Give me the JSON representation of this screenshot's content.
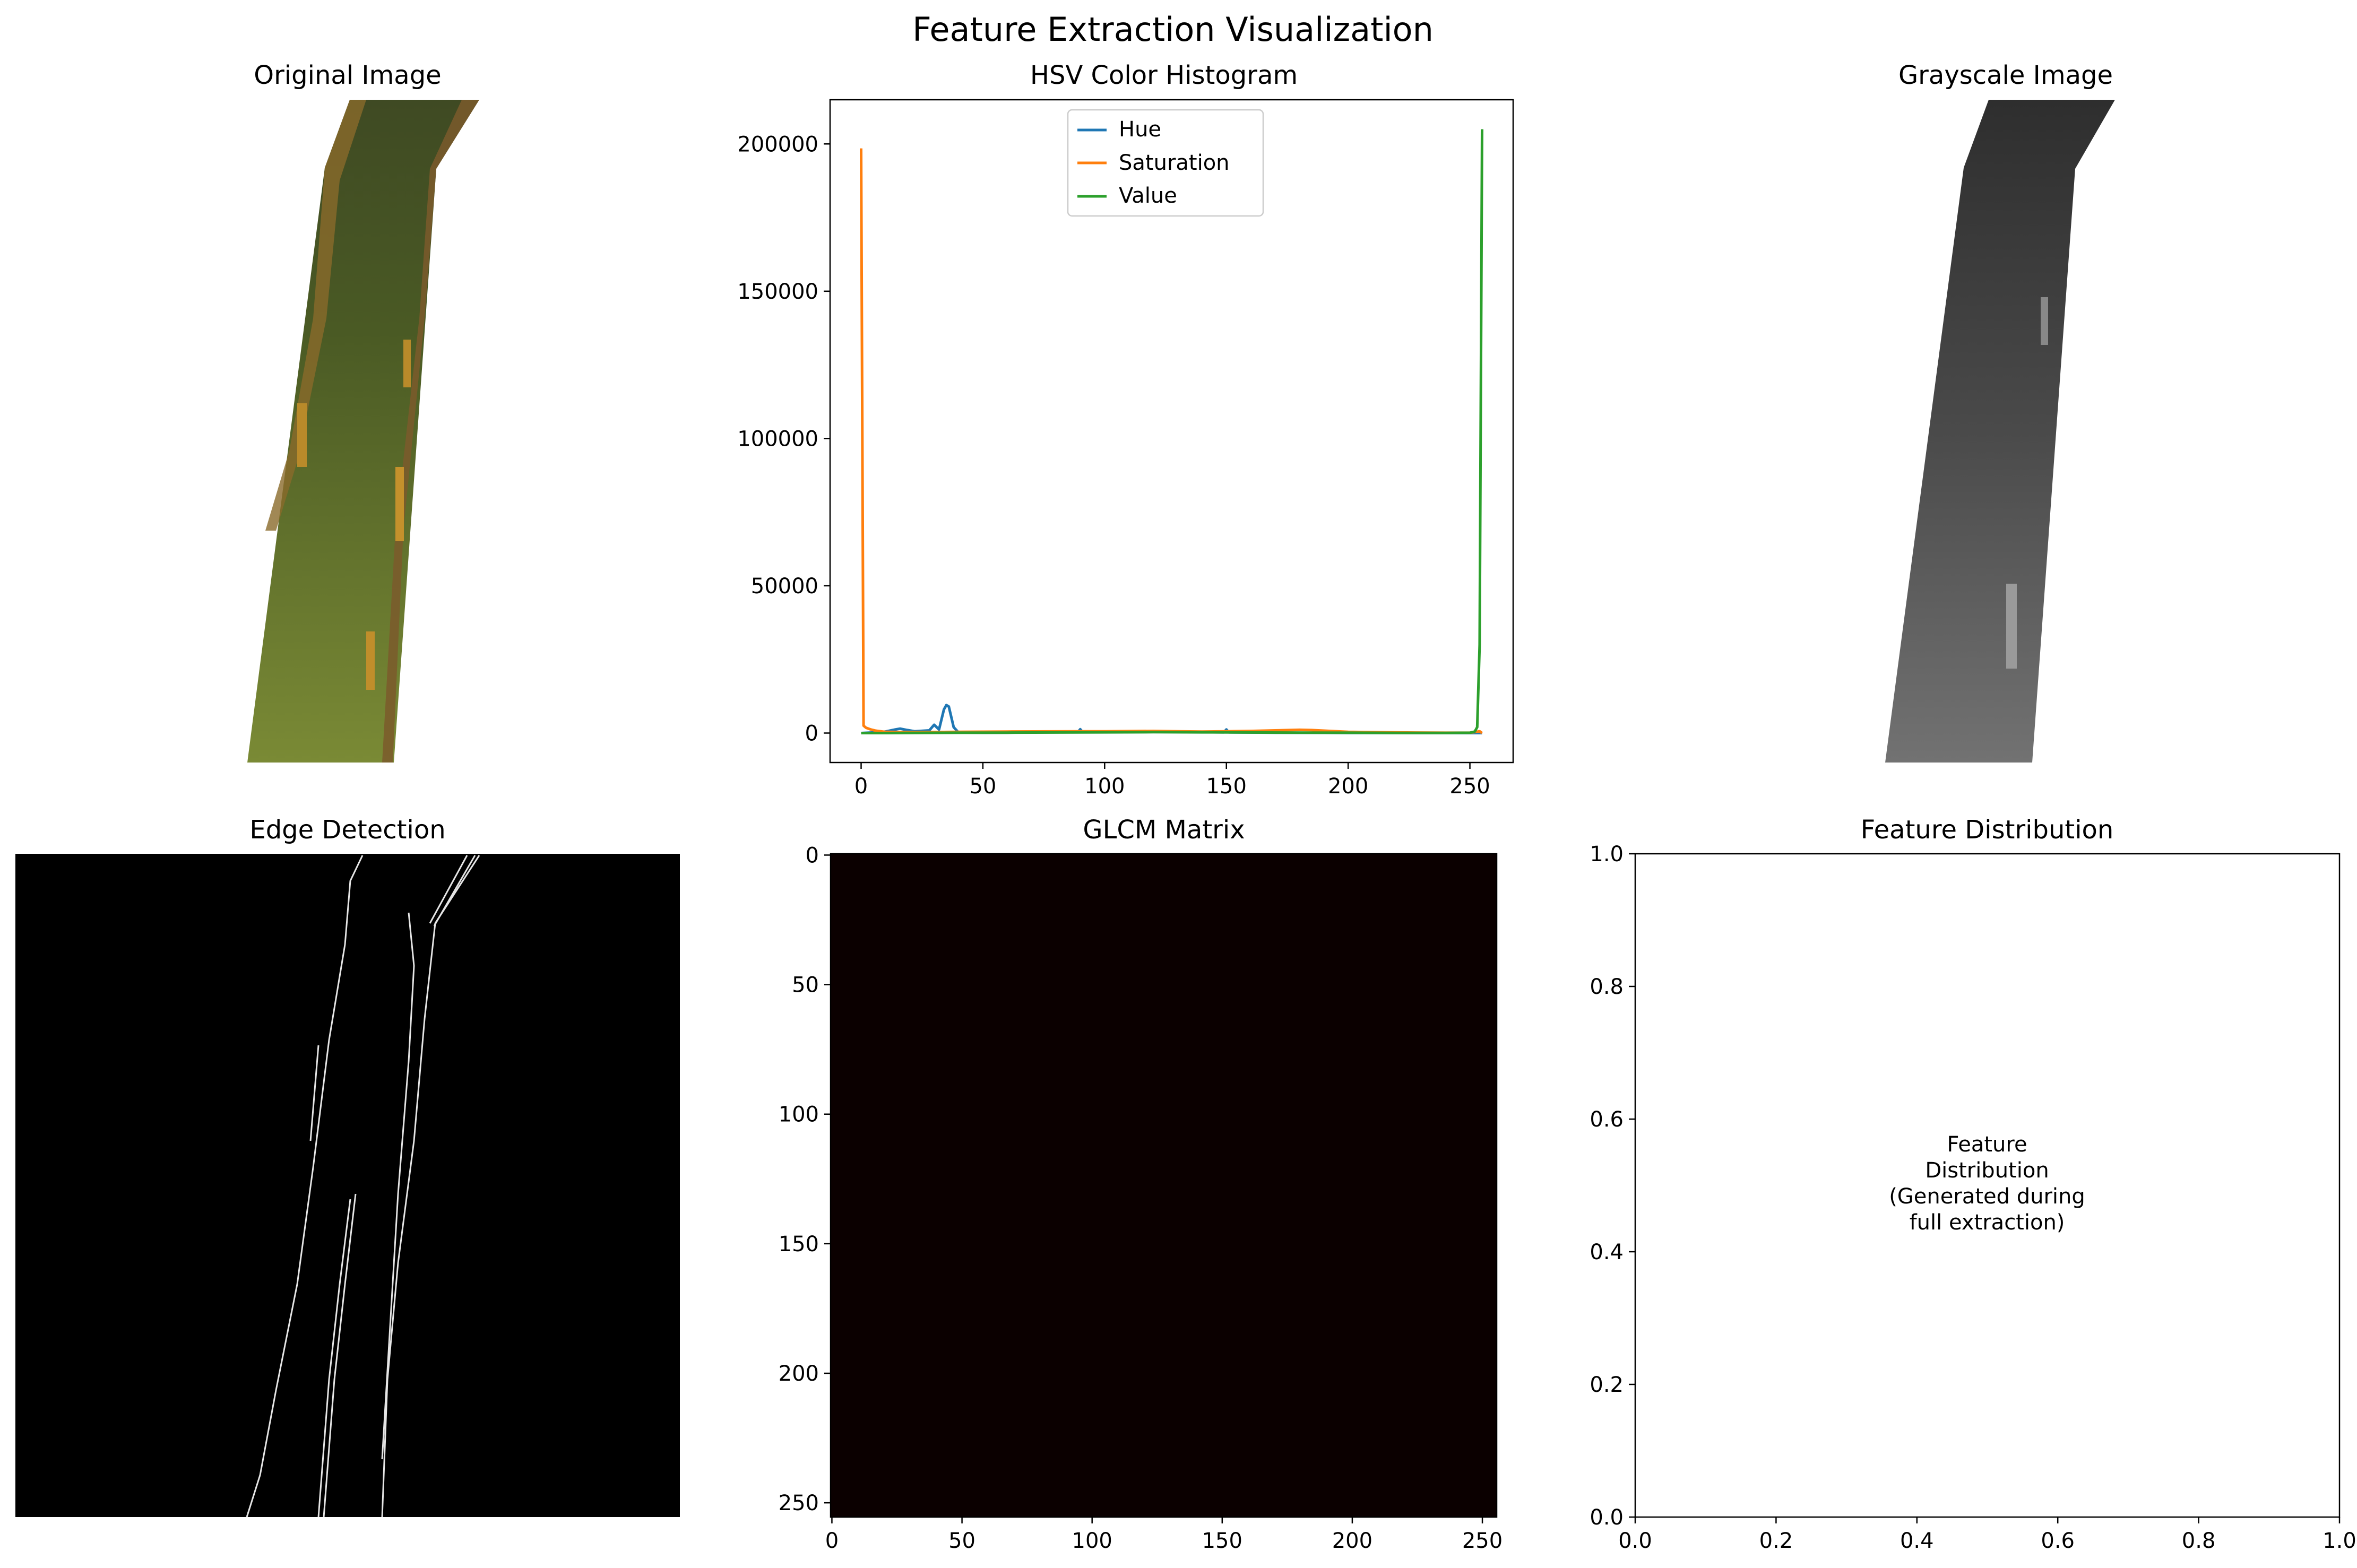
{
  "figure": {
    "title": "Feature Extraction Visualization"
  },
  "panels": {
    "original": {
      "title": "Original Image"
    },
    "histogram": {
      "title": "HSV Color Histogram"
    },
    "grayscale": {
      "title": "Grayscale Image"
    },
    "edges": {
      "title": "Edge Detection"
    },
    "glcm": {
      "title": "GLCM Matrix"
    },
    "distribution": {
      "title": "Feature Distribution",
      "annotation_lines": [
        "Feature",
        "Distribution",
        "(Generated during",
        "full extraction)"
      ]
    }
  },
  "colors": {
    "hue": "#1f77b4",
    "saturation": "#ff7f0e",
    "value": "#2ca02c",
    "glcm_fill": "#0b0000",
    "edge_background": "#000000"
  },
  "chart_data": [
    {
      "type": "line",
      "title": "HSV Color Histogram",
      "xlabel": "",
      "ylabel": "",
      "xlim": [
        -12.75,
        267.75
      ],
      "ylim": [
        -10000,
        215000
      ],
      "xticks": [
        0,
        50,
        100,
        150,
        200,
        250
      ],
      "yticks": [
        0,
        50000,
        100000,
        150000,
        200000
      ],
      "legend": {
        "placement": "upper-center",
        "entries": [
          "Hue",
          "Saturation",
          "Value"
        ]
      },
      "series": [
        {
          "name": "Hue",
          "color": "#1f77b4",
          "x": [
            0,
            5,
            10,
            14,
            16,
            19,
            22,
            28,
            30,
            32,
            34,
            35,
            36,
            38,
            40,
            50,
            60,
            70,
            80,
            89,
            90,
            91,
            100,
            110,
            120,
            130,
            140,
            149,
            150,
            151,
            160,
            170,
            180,
            190,
            200,
            210,
            220,
            230,
            240,
            250,
            255
          ],
          "y": [
            0,
            200,
            500,
            1200,
            1500,
            1000,
            600,
            900,
            2800,
            1200,
            8000,
            9500,
            9000,
            2000,
            200,
            100,
            150,
            250,
            300,
            300,
            1300,
            300,
            350,
            400,
            400,
            350,
            300,
            250,
            1200,
            250,
            200,
            150,
            100,
            80,
            60,
            40,
            30,
            20,
            10,
            0,
            0
          ]
        },
        {
          "name": "Saturation",
          "color": "#ff7f0e",
          "x": [
            0,
            1,
            2,
            4,
            6,
            8,
            10,
            20,
            40,
            60,
            80,
            100,
            120,
            130,
            140,
            150,
            160,
            170,
            180,
            185,
            190,
            200,
            220,
            240,
            250,
            254,
            255
          ],
          "y": [
            198500,
            2500,
            1800,
            1200,
            800,
            600,
            400,
            300,
            400,
            500,
            550,
            600,
            700,
            600,
            500,
            600,
            700,
            900,
            1100,
            1000,
            800,
            400,
            200,
            100,
            100,
            600,
            0
          ]
        },
        {
          "name": "Value",
          "color": "#2ca02c",
          "x": [
            0,
            10,
            20,
            40,
            60,
            80,
            100,
            120,
            140,
            160,
            180,
            200,
            220,
            240,
            250,
            252,
            253,
            254,
            255
          ],
          "y": [
            0,
            0,
            50,
            100,
            150,
            200,
            250,
            300,
            250,
            200,
            150,
            100,
            60,
            30,
            100,
            500,
            2000,
            30000,
            205000
          ]
        }
      ]
    },
    {
      "type": "heatmap",
      "title": "GLCM Matrix",
      "xticks": [
        0,
        50,
        100,
        150,
        200,
        250
      ],
      "yticks": [
        0,
        50,
        100,
        150,
        200,
        250
      ],
      "xlim": [
        -0.5,
        255.5
      ],
      "ylim": [
        255.5,
        -0.5
      ],
      "color": "#0b0000"
    },
    {
      "type": "scatter",
      "title": "Feature Distribution",
      "xlim": [
        0.0,
        1.0
      ],
      "ylim": [
        0.0,
        1.0
      ],
      "xticks": [
        "0.0",
        "0.2",
        "0.4",
        "0.6",
        "0.8",
        "1.0"
      ],
      "yticks": [
        "0.0",
        "0.2",
        "0.4",
        "0.6",
        "0.8",
        "1.0"
      ],
      "series": []
    }
  ]
}
